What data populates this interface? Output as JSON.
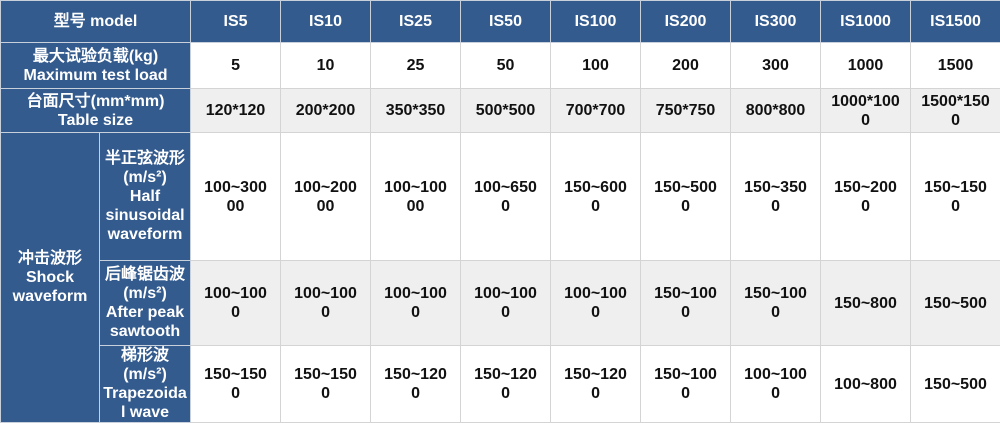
{
  "header": {
    "label": "型号 model",
    "models": [
      "IS5",
      "IS10",
      "IS25",
      "IS50",
      "IS100",
      "IS200",
      "IS300",
      "IS1000",
      "IS1500"
    ]
  },
  "rows": [
    {
      "label_cn": "最大试验负载(kg)",
      "label_en": "Maximum test load",
      "values": [
        "5",
        "10",
        "25",
        "50",
        "100",
        "200",
        "300",
        "1000",
        "1500"
      ]
    },
    {
      "label_cn": "台面尺寸(mm*mm)",
      "label_en": "Table size",
      "values": [
        "120*120",
        "200*200",
        "350*350",
        "500*500",
        "700*700",
        "750*750",
        "800*800",
        "1000*1000",
        "1500*1500"
      ]
    }
  ],
  "shock": {
    "label_cn": "冲击波形",
    "label_en": "Shock waveform",
    "waveforms": [
      {
        "label_cn": "半正弦波形",
        "unit": "(m/s²)",
        "label_en": "Half sinusoidal waveform",
        "values": [
          "100~30000",
          "100~20000",
          "100~10000",
          "100~6500",
          "150~6000",
          "150~5000",
          "150~3500",
          "150~2000",
          "150~1500"
        ]
      },
      {
        "label_cn": "后峰锯齿波",
        "unit": "(m/s²)",
        "label_en": "After peak sawtooth",
        "values": [
          "100~1000",
          "100~1000",
          "100~1000",
          "100~1000",
          "100~1000",
          "150~1000",
          "150~1000",
          "150~800",
          "150~500"
        ]
      },
      {
        "label_cn": "梯形波",
        "unit": "(m/s²)",
        "label_en": "Trapezoidal wave",
        "values": [
          "150~1500",
          "150~1500",
          "150~1200",
          "150~1200",
          "150~1200",
          "150~1000",
          "100~1000",
          "100~800",
          "150~500"
        ]
      }
    ]
  },
  "colors": {
    "header_bg": "#345b8e",
    "alt_row_bg": "#efefef"
  }
}
